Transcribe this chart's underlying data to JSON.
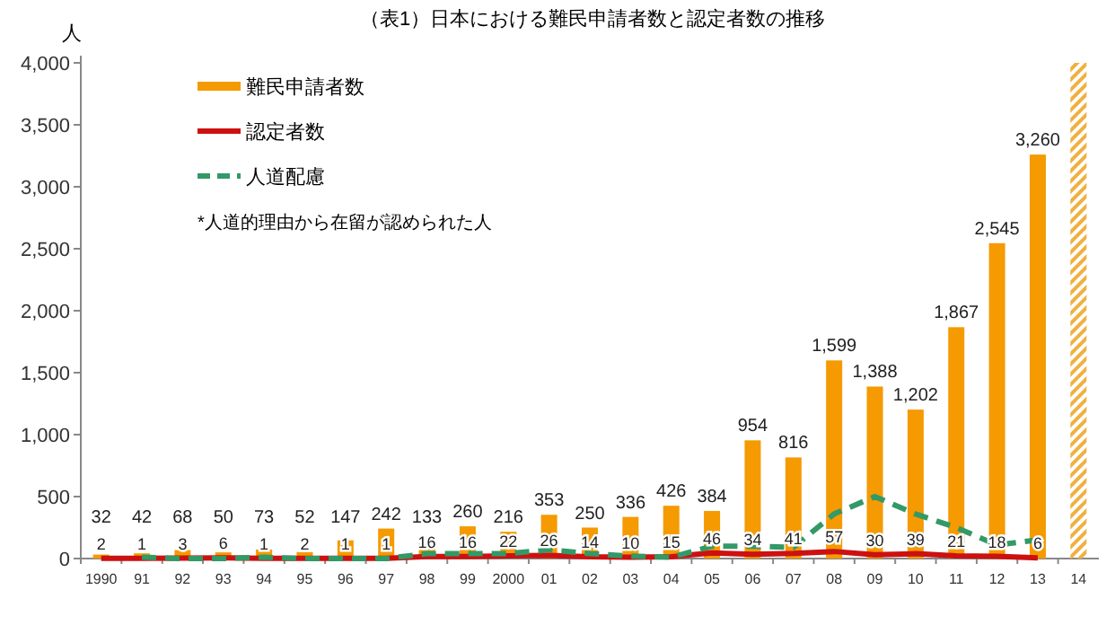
{
  "chart_data": {
    "type": "bar",
    "title": "（表1）日本における難民申請者数と認定者数の推移",
    "ylabel": "人",
    "categories": [
      "1990",
      "91",
      "92",
      "93",
      "94",
      "95",
      "96",
      "97",
      "98",
      "99",
      "2000",
      "01",
      "02",
      "03",
      "04",
      "05",
      "06",
      "07",
      "08",
      "09",
      "10",
      "11",
      "12",
      "13",
      "14"
    ],
    "series": [
      {
        "name": "難民申請者数",
        "color": "#f59a00",
        "values": [
          32,
          42,
          68,
          50,
          73,
          52,
          147,
          242,
          133,
          260,
          216,
          353,
          250,
          336,
          426,
          384,
          954,
          816,
          1599,
          1388,
          1202,
          1867,
          2545,
          3260,
          null
        ],
        "value_labels": [
          "32",
          "42",
          "68",
          "50",
          "73",
          "52",
          "147",
          "242",
          "133",
          "260",
          "216",
          "353",
          "250",
          "336",
          "426",
          "384",
          "954",
          "816",
          "1,599",
          "1,388",
          "1,202",
          "1,867",
          "2,545",
          "3,260",
          null
        ]
      },
      {
        "color": "#f0b040",
        "values": [
          null,
          null,
          null,
          null,
          null,
          null,
          null,
          null,
          null,
          null,
          null,
          null,
          null,
          null,
          null,
          null,
          null,
          null,
          null,
          null,
          null,
          null,
          null,
          null,
          4000
        ]
      },
      {
        "name": "認定者数",
        "type": "line",
        "color": "#cc1111",
        "values": [
          2,
          1,
          3,
          6,
          1,
          2,
          1,
          1,
          16,
          16,
          22,
          26,
          14,
          10,
          15,
          46,
          34,
          41,
          57,
          30,
          39,
          21,
          18,
          6,
          null
        ],
        "value_labels": [
          "2",
          "1",
          "3",
          "6",
          "1",
          "2",
          "1",
          "1",
          "16",
          "16",
          "22",
          "26",
          "14",
          "10",
          "15",
          "46",
          "34",
          "41",
          "57",
          "30",
          "39",
          "21",
          "18",
          "6",
          null
        ]
      },
      {
        "name": "人道配慮",
        "type": "line",
        "line_style": "dashed",
        "color": "#339966",
        "values": [
          null,
          10,
          0,
          0,
          10,
          0,
          0,
          0,
          40,
          40,
          40,
          70,
          40,
          20,
          10,
          100,
          100,
          90,
          360,
          500,
          360,
          250,
          110,
          150,
          null
        ]
      }
    ],
    "ylim": [
      0,
      4000
    ],
    "yticks": [
      0,
      {
        "value": 500,
        "label": "500"
      },
      {
        "value": 1000,
        "label": "1,000"
      },
      {
        "value": 1500,
        "label": "1,500"
      },
      {
        "value": 2000,
        "label": "2,000"
      },
      {
        "value": 2500,
        "label": "2,500"
      },
      {
        "value": 3000,
        "label": "3,000"
      },
      {
        "value": 3500,
        "label": "3,500"
      },
      {
        "value": 4000,
        "label": "4,000"
      }
    ],
    "grid": false,
    "legend": "top left",
    "annotations": [
      "*人道的理由から在留が認められた人"
    ]
  }
}
